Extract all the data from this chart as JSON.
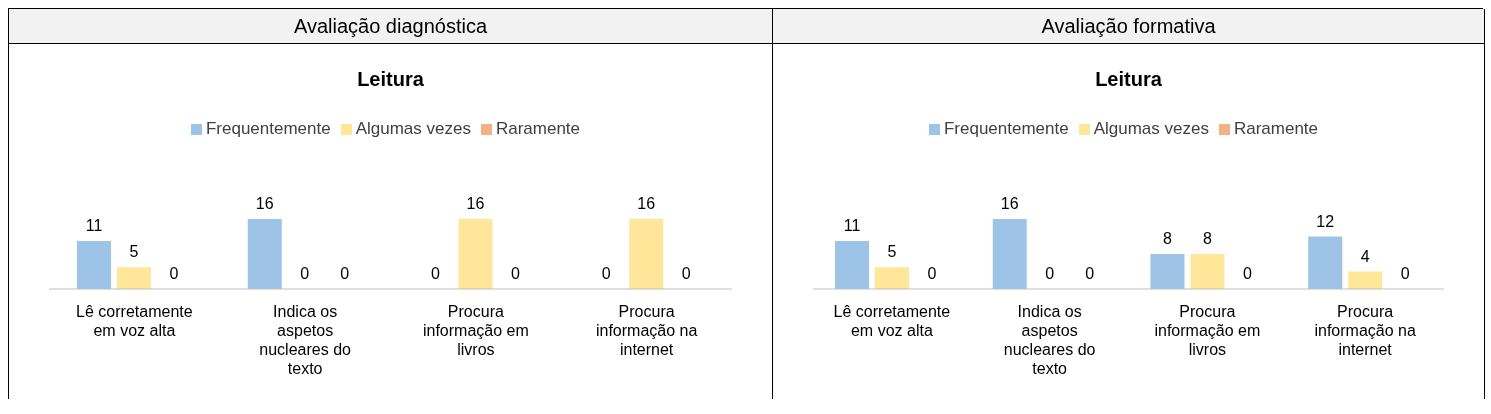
{
  "chart_data": [
    {
      "type": "bar",
      "title": "Avaliação diagnóstica",
      "subtitle": "Leitura",
      "categories": [
        "Lê corretamente em voz alta",
        "Indica os aspetos nucleares do texto",
        "Procura informação em livros",
        "Procura informação na internet"
      ],
      "series": [
        {
          "name": "Frequentemente",
          "color": "#9dc3e6",
          "values": [
            11,
            16,
            0,
            0
          ]
        },
        {
          "name": "Algumas vezes",
          "color": "#ffe699",
          "values": [
            5,
            0,
            16,
            16
          ]
        },
        {
          "name": "Raramente",
          "color": "#f4b183",
          "values": [
            0,
            0,
            0,
            0
          ]
        }
      ],
      "data_labels": true,
      "legend": "top"
    },
    {
      "type": "bar",
      "title": "Avaliação formativa",
      "subtitle": "Leitura",
      "categories": [
        "Lê corretamente em voz alta",
        "Indica os aspetos nucleares do texto",
        "Procura informação em livros",
        "Procura informação na internet"
      ],
      "series": [
        {
          "name": "Frequentemente",
          "color": "#9dc3e6",
          "values": [
            11,
            16,
            8,
            12
          ]
        },
        {
          "name": "Algumas vezes",
          "color": "#ffe699",
          "values": [
            5,
            0,
            8,
            4
          ]
        },
        {
          "name": "Raramente",
          "color": "#f4b183",
          "values": [
            0,
            0,
            0,
            0
          ]
        }
      ],
      "data_labels": true,
      "legend": "top"
    }
  ]
}
